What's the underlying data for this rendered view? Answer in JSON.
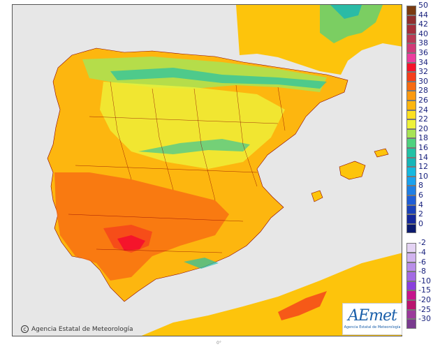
{
  "copyright": {
    "text": "Agencia Estatal de Meteorología"
  },
  "logo": {
    "word": "AEmet",
    "subtitle": "Agencia Estatal de Meteorología"
  },
  "bottom_mark": "0°",
  "legend": {
    "positive": [
      {
        "label": "50",
        "color": "#7a3b12"
      },
      {
        "label": "44",
        "color": "#8f2f2f"
      },
      {
        "label": "42",
        "color": "#a32f3c"
      },
      {
        "label": "40",
        "color": "#b93a56"
      },
      {
        "label": "38",
        "color": "#d13a78"
      },
      {
        "label": "36",
        "color": "#ec3e9e"
      },
      {
        "label": "34",
        "color": "#f5142b"
      },
      {
        "label": "32",
        "color": "#f43f1c"
      },
      {
        "label": "30",
        "color": "#f76b12"
      },
      {
        "label": "28",
        "color": "#fb9a10"
      },
      {
        "label": "26",
        "color": "#fdb60f"
      },
      {
        "label": "24",
        "color": "#fde021"
      },
      {
        "label": "22",
        "color": "#eef23a"
      },
      {
        "label": "20",
        "color": "#a8e455"
      },
      {
        "label": "18",
        "color": "#4fd27f"
      },
      {
        "label": "16",
        "color": "#22c2a6"
      },
      {
        "label": "14",
        "color": "#16b6b8"
      },
      {
        "label": "12",
        "color": "#15b9df"
      },
      {
        "label": "10",
        "color": "#1aa2ee"
      },
      {
        "label": "8",
        "color": "#1f7fe4"
      },
      {
        "label": "6",
        "color": "#1f5ed6"
      },
      {
        "label": "4",
        "color": "#1b42b8"
      },
      {
        "label": "2",
        "color": "#15289a"
      },
      {
        "label": "0",
        "color": "#0b1a6e"
      }
    ],
    "negative": [
      {
        "label": "-2",
        "color": "#e4d3f4"
      },
      {
        "label": "-4",
        "color": "#d1b3ef"
      },
      {
        "label": "-6",
        "color": "#b98ee9"
      },
      {
        "label": "-8",
        "color": "#a36ae4"
      },
      {
        "label": "-10",
        "color": "#8a3fdd"
      },
      {
        "label": "-15",
        "color": "#c6158d"
      },
      {
        "label": "-20",
        "color": "#b9156f"
      },
      {
        "label": "-25",
        "color": "#9b3a9b"
      },
      {
        "label": "-30",
        "color": "#7a3b8f"
      }
    ]
  }
}
